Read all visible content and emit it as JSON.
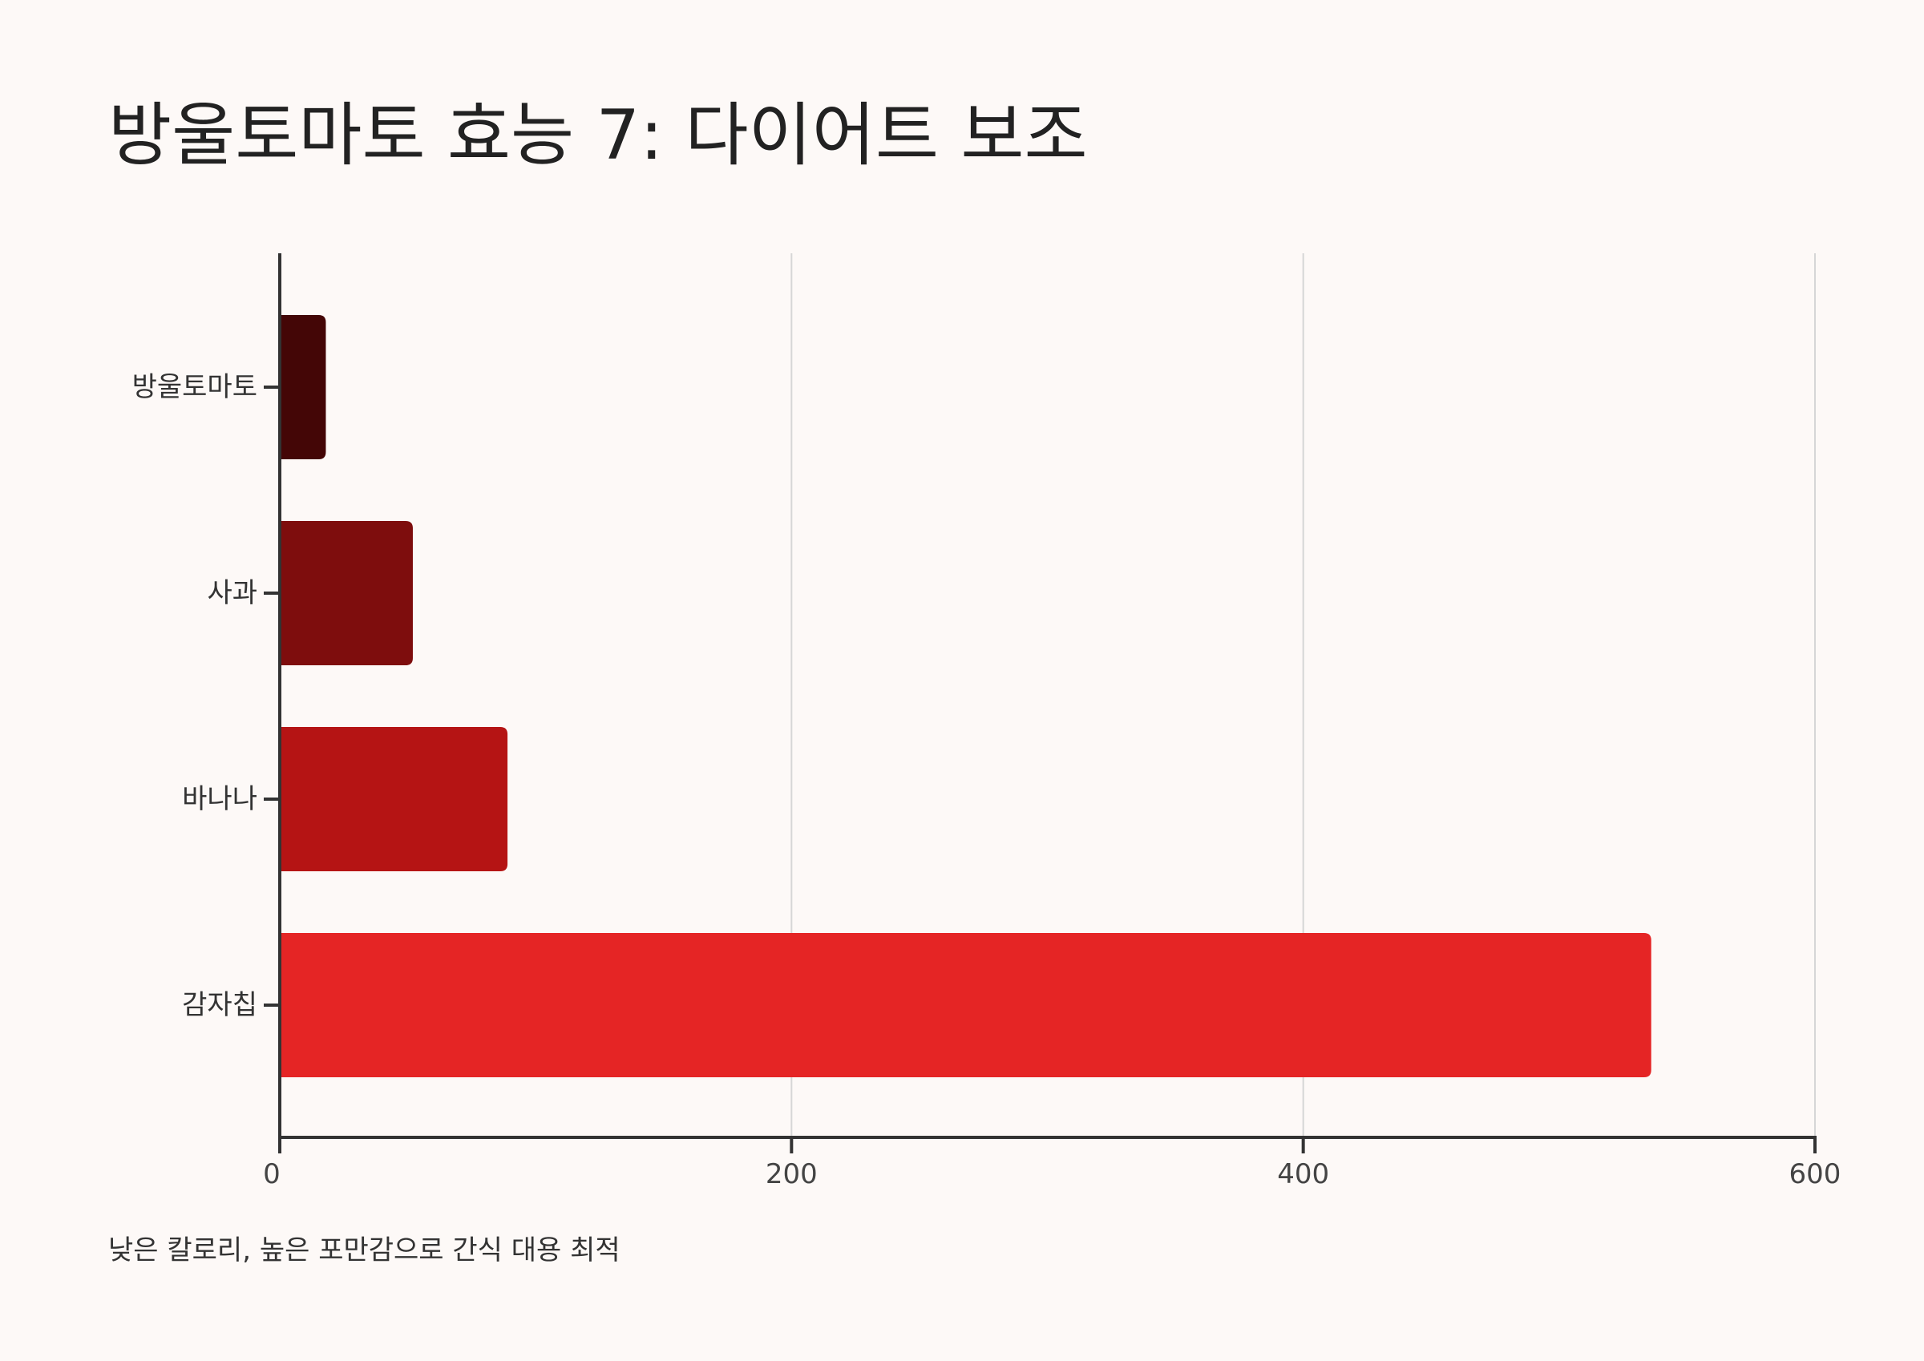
{
  "title": "방울토마토 효능 7: 다이어트 보조",
  "caption": "낮은 칼로리, 높은 포만감으로 간식 대용 최적",
  "chart_data": {
    "type": "bar",
    "orientation": "horizontal",
    "categories": [
      "방울토마토",
      "사과",
      "바나나",
      "감자칩"
    ],
    "values": [
      18,
      52,
      89,
      536
    ],
    "colors": [
      "#440606",
      "#7e0d0d",
      "#b51414",
      "#e52525"
    ],
    "xlim": [
      0,
      600
    ],
    "xticks": [
      0,
      200,
      400,
      600
    ],
    "grid": "vertical",
    "legend": "none",
    "xlabel": "",
    "ylabel": ""
  }
}
